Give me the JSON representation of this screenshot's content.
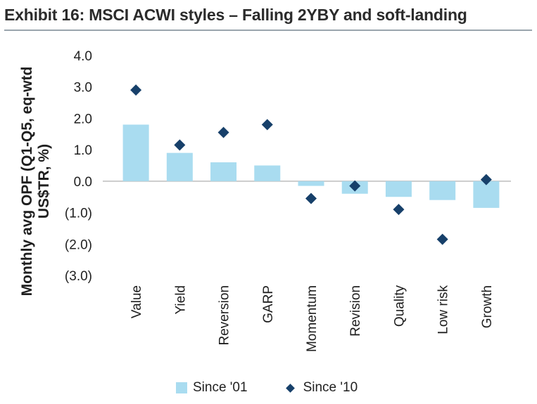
{
  "title": "Exhibit 16: MSCI ACWI styles – Falling 2YBY and soft-landing",
  "colors": {
    "bar": "#a9dcf0",
    "marker": "#17406a",
    "zero_line": "#bdbdbd"
  },
  "chart_data": {
    "type": "bar",
    "title": "Exhibit 16: MSCI ACWI styles – Falling 2YBY and soft-landing",
    "xlabel": "",
    "ylabel_lines": [
      "Monthly avg OPF (Q1-Q5, eq-wtd",
      "US$TR, %)"
    ],
    "ylim": [
      -3.0,
      4.0
    ],
    "yticks": [
      4.0,
      3.0,
      2.0,
      1.0,
      0.0,
      -1.0,
      -2.0,
      -3.0
    ],
    "ytick_labels": [
      "4.0",
      "3.0",
      "2.0",
      "1.0",
      "0.0",
      "(1.0)",
      "(2.0)",
      "(3.0)"
    ],
    "categories": [
      "Value",
      "Yield",
      "Reversion",
      "GARP",
      "Momentum",
      "Revision",
      "Quality",
      "Low risk",
      "Growth"
    ],
    "series": [
      {
        "name": "Since '01",
        "kind": "bar",
        "values": [
          1.8,
          0.9,
          0.6,
          0.5,
          -0.15,
          -0.4,
          -0.5,
          -0.6,
          -0.85
        ]
      },
      {
        "name": "Since '10",
        "kind": "diamond",
        "values": [
          2.9,
          1.15,
          1.55,
          1.8,
          -0.55,
          -0.15,
          -0.9,
          -1.85,
          0.05
        ]
      }
    ],
    "legend_position": "bottom-center"
  }
}
